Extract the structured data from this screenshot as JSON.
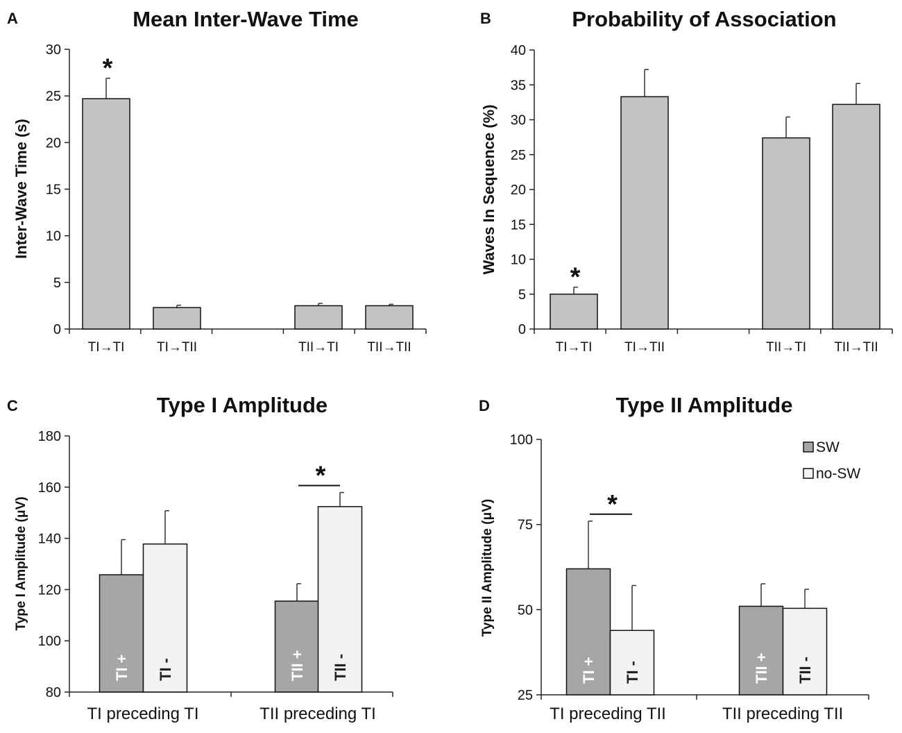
{
  "chart_data": [
    {
      "panel": "A",
      "type": "bar",
      "title": "Mean Inter-Wave Time",
      "ylabel": "Inter-Wave Time (s)",
      "xlabel": "",
      "ylim": [
        0,
        30
      ],
      "yticks": [
        0,
        5,
        10,
        15,
        20,
        25,
        30
      ],
      "categories": [
        "TI→TI",
        "TI→TII",
        "TII→TI",
        "TII→TII"
      ],
      "values": [
        24.7,
        2.3,
        2.5,
        2.5
      ],
      "errors": [
        2.2,
        0.25,
        0.25,
        0.15
      ],
      "significant": [
        "*",
        "",
        "",
        ""
      ],
      "bar_color": "#c3c3c3"
    },
    {
      "panel": "B",
      "type": "bar",
      "title": "Probability of Association",
      "ylabel": "Waves In Sequence (%)",
      "xlabel": "",
      "ylim": [
        0,
        40
      ],
      "yticks": [
        0,
        5,
        10,
        15,
        20,
        25,
        30,
        35,
        40
      ],
      "categories": [
        "TI→TI",
        "TI→TII",
        "TII→TI",
        "TII→TII"
      ],
      "values": [
        5.0,
        33.3,
        27.4,
        32.2
      ],
      "errors": [
        1.0,
        3.9,
        3.0,
        3.0
      ],
      "significant": [
        "*",
        "",
        "",
        ""
      ],
      "bar_color": "#c3c3c3"
    },
    {
      "panel": "C",
      "type": "bar",
      "title": "Type I Amplitude",
      "ylabel": "Type I Amplitude (μV)",
      "xlabel": "",
      "ylim": [
        80,
        180
      ],
      "yticks": [
        80,
        100,
        120,
        140,
        160,
        180
      ],
      "categories": [
        "TI preceding TI",
        "TII preceding TI"
      ],
      "series": [
        {
          "name": "SW",
          "color": "#a6a6a6",
          "values": [
            125.8,
            115.5
          ],
          "errors": [
            13.7,
            6.8
          ],
          "bar_labels": [
            "TI +",
            "TII +"
          ]
        },
        {
          "name": "no-SW",
          "color": "#f2f2f2",
          "values": [
            137.8,
            152.4
          ],
          "errors": [
            13.0,
            5.5
          ],
          "bar_labels": [
            "TI -",
            "TII -"
          ]
        }
      ],
      "significant": [
        "",
        "*"
      ]
    },
    {
      "panel": "D",
      "type": "bar",
      "title": "Type II Amplitude",
      "ylabel": "Type II Amplitude (μV)",
      "xlabel": "",
      "ylim": [
        25,
        100
      ],
      "yticks": [
        25,
        50,
        75,
        100
      ],
      "categories": [
        "TI preceding TII",
        "TII preceding TII"
      ],
      "series": [
        {
          "name": "SW",
          "color": "#a6a6a6",
          "values": [
            62.0,
            51.0
          ],
          "errors": [
            14.0,
            6.6
          ],
          "bar_labels": [
            "TI +",
            "TII +"
          ]
        },
        {
          "name": "no-SW",
          "color": "#f2f2f2",
          "values": [
            43.9,
            50.4
          ],
          "errors": [
            13.2,
            5.6
          ],
          "bar_labels": [
            "TI -",
            "TII -"
          ]
        }
      ],
      "significant": [
        "*",
        ""
      ],
      "legend": [
        "SW",
        "no-SW"
      ],
      "legend_position": "top-right"
    }
  ]
}
